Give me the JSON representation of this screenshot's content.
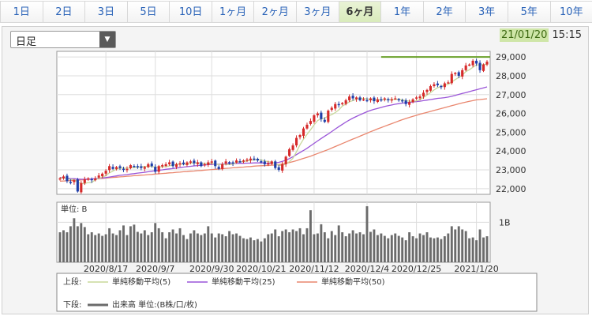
{
  "tabs": [
    "1日",
    "2日",
    "3日",
    "5日",
    "10日",
    "1ヶ月",
    "2ヶ月",
    "3ヶ月",
    "6ヶ月",
    "1年",
    "2年",
    "3年",
    "5年",
    "10年"
  ],
  "active_tab": "6ヶ月",
  "period_select": {
    "value": "日足"
  },
  "timestamp": {
    "date": "21/01/20",
    "time": "15:15"
  },
  "legend": {
    "upper_label": "上段:",
    "lower_label": "下段:",
    "items": [
      {
        "name": "単純移動平均(5)",
        "color": "#c8d89a"
      },
      {
        "name": "単純移動平均(25)",
        "color": "#9a55d8"
      },
      {
        "name": "単純移動平均(50)",
        "color": "#e9866e"
      }
    ],
    "volume_label": "出来高 単位:(B株/口/枚)",
    "volume_color": "#6b6b6b"
  },
  "chart_data": [
    {
      "type": "line",
      "title": "",
      "y_ticks": [
        22000,
        23000,
        24000,
        25000,
        26000,
        27000,
        28000,
        29000
      ],
      "ylim": [
        21700,
        29300
      ],
      "x_tick_labels": [
        "2020/8/17",
        "2020/9/7",
        "2020/9/30",
        "2020/10/21",
        "2020/11/12",
        "2020/12/4",
        "2020/12/25",
        "2021/1/20"
      ],
      "x_tick_index": [
        13,
        27,
        43,
        57,
        72,
        87,
        101,
        118
      ],
      "colors": {
        "up": "#d62a2a",
        "down": "#1f3fa8",
        "reference": "#6aa12a"
      },
      "reference_line": {
        "value": 29000,
        "start_index": 91
      },
      "close": [
        22550,
        22650,
        22400,
        22350,
        22450,
        21850,
        22300,
        22500,
        22550,
        22450,
        22550,
        22700,
        22800,
        22950,
        23200,
        23050,
        23150,
        23100,
        23000,
        23050,
        23250,
        23200,
        23150,
        23100,
        23150,
        23300,
        23200,
        22900,
        23200,
        23250,
        23300,
        23400,
        23200,
        23300,
        23350,
        23300,
        23400,
        23450,
        23350,
        23400,
        23200,
        23300,
        23400,
        23450,
        23200,
        23050,
        23300,
        23450,
        23400,
        23350,
        23500,
        23450,
        23500,
        23550,
        23600,
        23550,
        23500,
        23450,
        23300,
        23350,
        23450,
        23100,
        23000,
        23300,
        23700,
        24100,
        24300,
        24700,
        24850,
        25200,
        25400,
        25600,
        25900,
        26000,
        25700,
        25550,
        26150,
        26300,
        26500,
        26450,
        26550,
        26700,
        26900,
        26800,
        26850,
        26700,
        26750,
        26700,
        26800,
        26650,
        26750,
        26700,
        26800,
        26700,
        26750,
        26800,
        26700,
        26650,
        26500,
        26600,
        26750,
        26850,
        26900,
        27100,
        27250,
        27450,
        27550,
        27500,
        27400,
        27600,
        27650,
        28100,
        28150,
        28000,
        28300,
        28550,
        28600,
        28800,
        28650,
        28300,
        28600,
        28750
      ],
      "sma5": [
        22550,
        22600,
        22533,
        22488,
        22480,
        22360,
        22270,
        22280,
        22330,
        22330,
        22470,
        22550,
        22610,
        22690,
        22840,
        22940,
        23040,
        23100,
        23100,
        23080,
        23110,
        23120,
        23140,
        23160,
        23180,
        23200,
        23190,
        23130,
        23150,
        23170,
        23170,
        23210,
        23270,
        23290,
        23310,
        23310,
        23310,
        23360,
        23370,
        23380,
        23360,
        23340,
        23340,
        23350,
        23310,
        23280,
        23290,
        23290,
        23280,
        23310,
        23400,
        23430,
        23440,
        23470,
        23520,
        23530,
        23540,
        23530,
        23480,
        23430,
        23410,
        23330,
        23240,
        23240,
        23310,
        23440,
        23620,
        23960,
        24330,
        24630,
        24890,
        25130,
        25390,
        25620,
        25720,
        25750,
        25870,
        25940,
        26040,
        26190,
        26390,
        26500,
        26620,
        26680,
        26760,
        26800,
        26800,
        26770,
        26760,
        26720,
        26730,
        26720,
        26740,
        26720,
        26740,
        26750,
        26750,
        26720,
        26680,
        26650,
        26640,
        26670,
        26730,
        26850,
        26980,
        27110,
        27250,
        27370,
        27430,
        27500,
        27540,
        27670,
        27800,
        27910,
        28040,
        28220,
        28320,
        28450,
        28580,
        28580,
        28590,
        28620
      ],
      "sma25": [
        22600,
        22580,
        22560,
        22540,
        22530,
        22510,
        22500,
        22500,
        22510,
        22520,
        22530,
        22550,
        22570,
        22590,
        22620,
        22650,
        22680,
        22710,
        22730,
        22750,
        22780,
        22800,
        22830,
        22850,
        22870,
        22900,
        22930,
        22950,
        22980,
        23000,
        23030,
        23050,
        23070,
        23100,
        23120,
        23150,
        23170,
        23190,
        23210,
        23230,
        23250,
        23260,
        23280,
        23290,
        23300,
        23300,
        23310,
        23320,
        23330,
        23330,
        23340,
        23350,
        23350,
        23360,
        23360,
        23370,
        23370,
        23370,
        23360,
        23350,
        23360,
        23370,
        23400,
        23450,
        23520,
        23600,
        23700,
        23810,
        23920,
        24030,
        24150,
        24280,
        24410,
        24540,
        24670,
        24790,
        24910,
        25040,
        25170,
        25300,
        25420,
        25540,
        25650,
        25750,
        25840,
        25930,
        26010,
        26090,
        26160,
        26220,
        26270,
        26320,
        26370,
        26410,
        26450,
        26490,
        26520,
        26550,
        26570,
        26590,
        26610,
        26630,
        26650,
        26680,
        26710,
        26740,
        26770,
        26800,
        26820,
        26840,
        26870,
        26910,
        26960,
        27010,
        27060,
        27110,
        27160,
        27210,
        27260,
        27310,
        27360,
        27410
      ],
      "sma50": [
        22400,
        22410,
        22420,
        22430,
        22440,
        22450,
        22460,
        22480,
        22490,
        22510,
        22520,
        22540,
        22550,
        22570,
        22580,
        22600,
        22610,
        22630,
        22640,
        22660,
        22670,
        22690,
        22700,
        22720,
        22730,
        22750,
        22760,
        22780,
        22790,
        22810,
        22820,
        22840,
        22850,
        22870,
        22880,
        22900,
        22910,
        22930,
        22940,
        22960,
        22970,
        22990,
        23000,
        23020,
        23030,
        23050,
        23060,
        23080,
        23090,
        23110,
        23120,
        23140,
        23150,
        23170,
        23180,
        23200,
        23210,
        23220,
        23230,
        23240,
        23250,
        23260,
        23280,
        23310,
        23350,
        23390,
        23440,
        23490,
        23550,
        23610,
        23670,
        23730,
        23800,
        23870,
        23940,
        24010,
        24080,
        24160,
        24240,
        24320,
        24400,
        24480,
        24560,
        24640,
        24710,
        24790,
        24870,
        24950,
        25030,
        25100,
        25180,
        25250,
        25320,
        25390,
        25460,
        25530,
        25600,
        25670,
        25730,
        25790,
        25850,
        25900,
        25960,
        26010,
        26060,
        26110,
        26160,
        26210,
        26260,
        26310,
        26360,
        26410,
        26460,
        26510,
        26560,
        26600,
        26640,
        26680,
        26720,
        26740,
        26760,
        26780
      ],
      "volume_unit_label": "単位: B",
      "volume_tick_label": "1B",
      "volume_tick_value": 1.0,
      "volume_ylim": [
        0,
        1.5
      ],
      "volume": [
        0.75,
        0.8,
        0.75,
        0.9,
        1.1,
        0.9,
        0.98,
        0.88,
        0.7,
        0.75,
        0.68,
        0.72,
        0.66,
        0.7,
        0.85,
        0.72,
        0.68,
        0.8,
        0.92,
        0.68,
        0.9,
        0.94,
        0.76,
        0.72,
        0.8,
        0.68,
        0.75,
        0.98,
        0.85,
        0.75,
        0.6,
        0.75,
        0.82,
        0.72,
        0.85,
        0.68,
        0.58,
        0.72,
        0.8,
        0.72,
        0.68,
        0.72,
        0.9,
        0.72,
        0.62,
        0.72,
        0.7,
        0.65,
        0.78,
        0.7,
        0.72,
        0.66,
        0.6,
        0.58,
        0.62,
        0.55,
        0.58,
        0.52,
        0.6,
        0.7,
        0.72,
        0.82,
        0.65,
        0.78,
        0.82,
        0.75,
        0.82,
        0.78,
        0.85,
        0.7,
        0.85,
        1.3,
        0.7,
        0.72,
        0.95,
        0.75,
        0.6,
        0.78,
        0.68,
        0.92,
        0.75,
        0.65,
        0.72,
        0.8,
        0.72,
        0.75,
        0.7,
        1.4,
        0.76,
        0.82,
        0.68,
        0.72,
        0.66,
        0.6,
        0.68,
        0.72,
        0.66,
        0.62,
        0.55,
        0.75,
        0.65,
        0.6,
        0.72,
        0.68,
        0.75,
        0.62,
        0.6,
        0.62,
        0.58,
        0.65,
        0.72,
        0.9,
        0.82,
        0.9,
        0.82,
        0.78,
        0.6,
        0.62,
        0.55,
        0.82,
        0.62,
        0.65
      ]
    }
  ]
}
